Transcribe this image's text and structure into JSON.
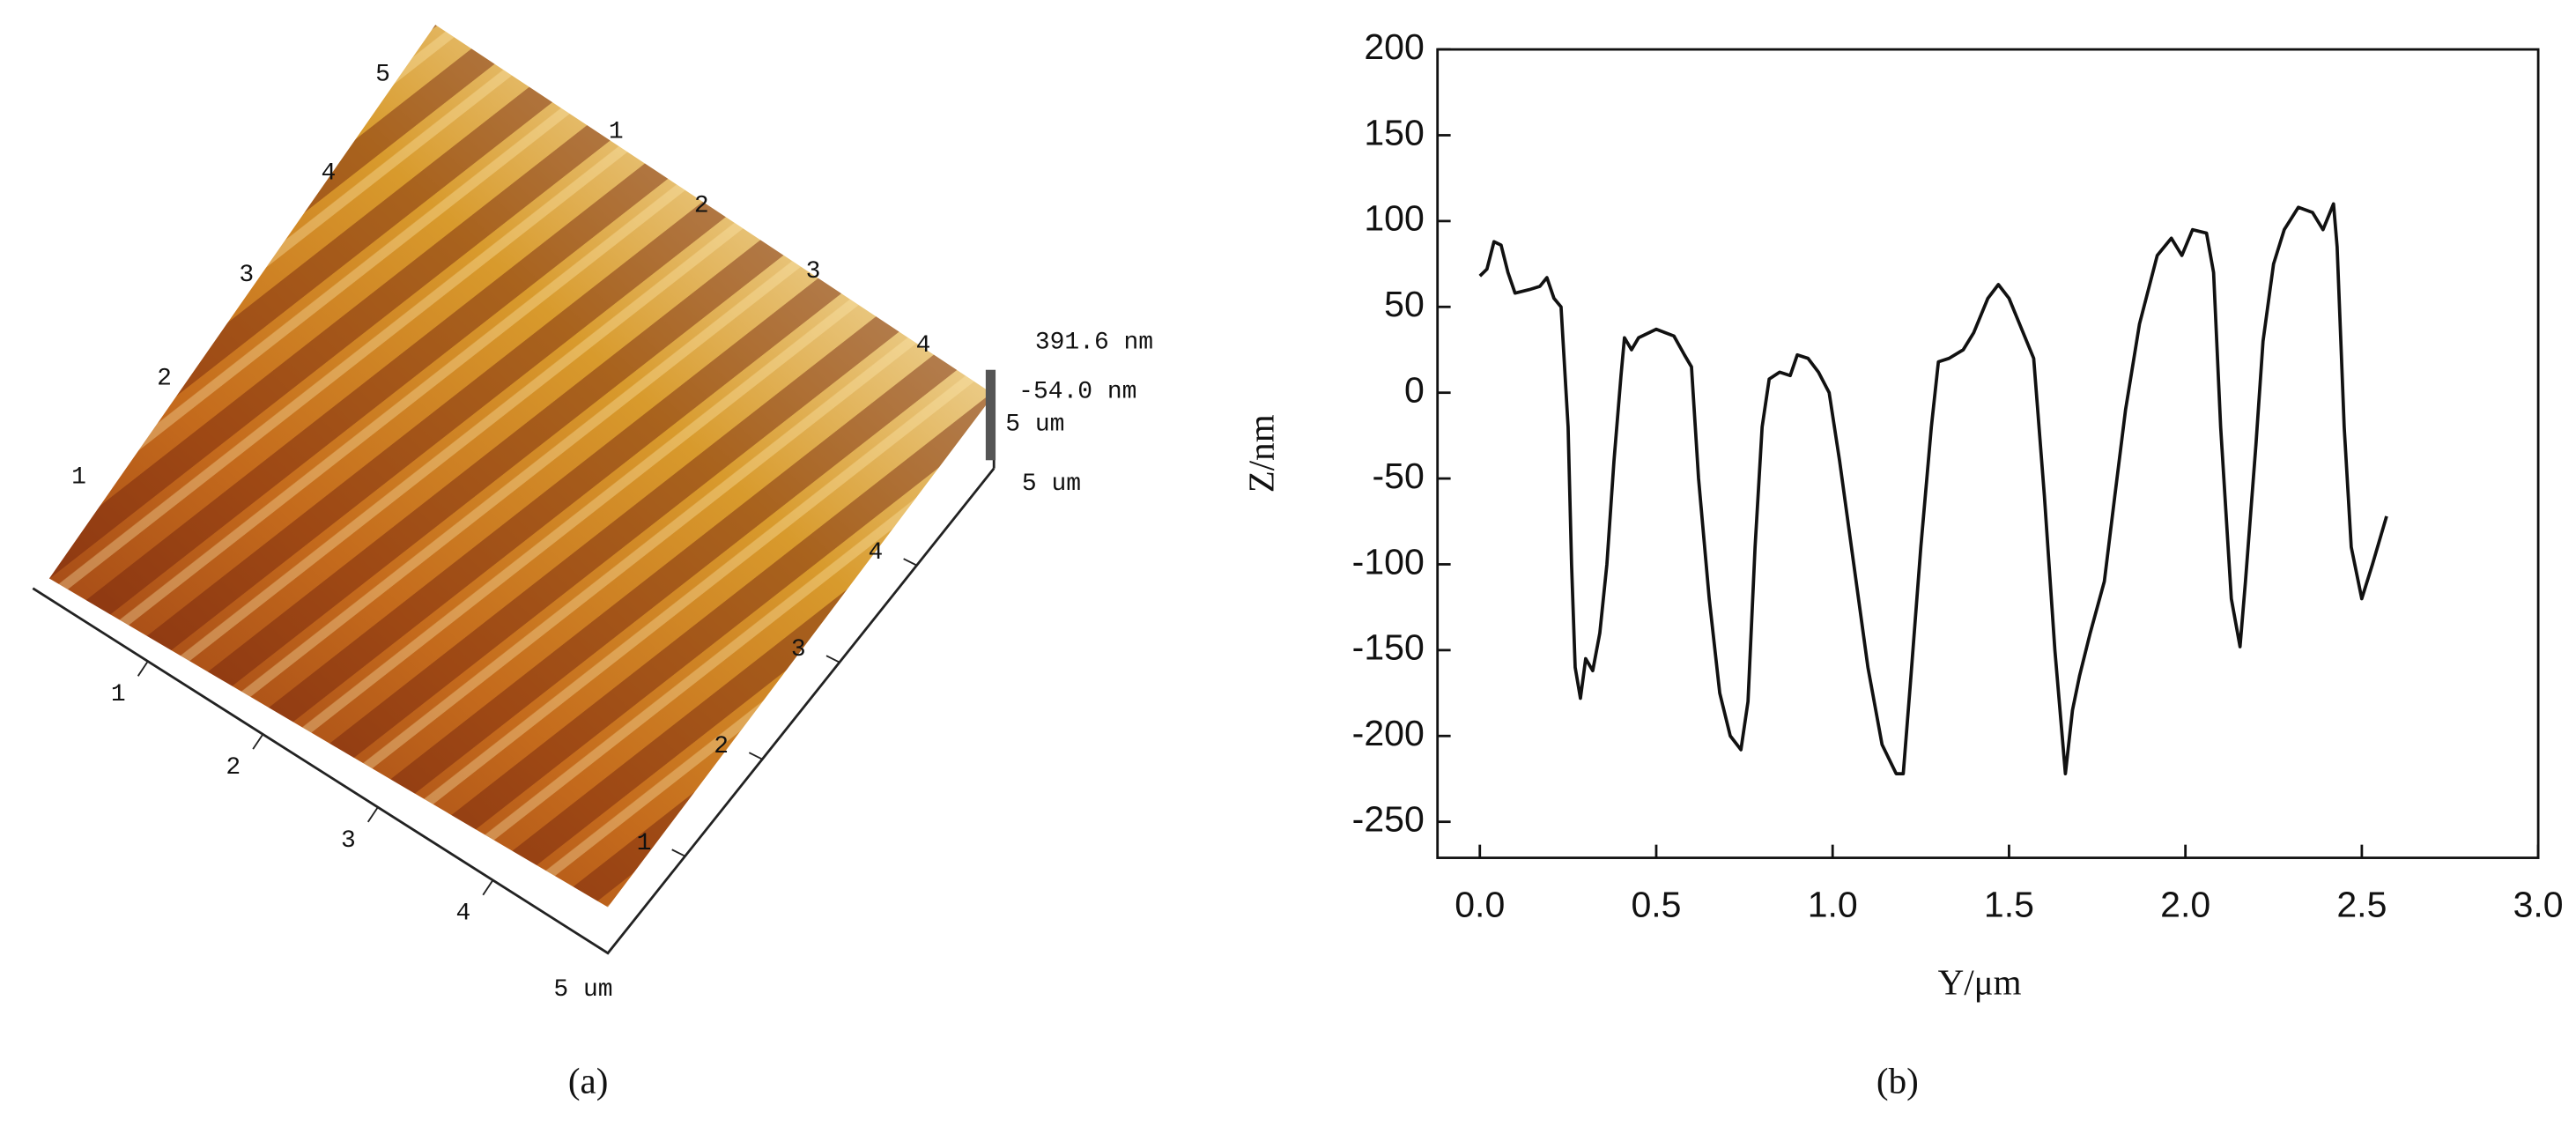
{
  "afm_image": {
    "height_ticks": [
      "1",
      "2",
      "3",
      "4",
      "5"
    ],
    "back_ticks": [
      "1",
      "2",
      "3",
      "4"
    ],
    "x_ticks": [
      "1",
      "2",
      "3",
      "4"
    ],
    "x_end_label": "5 um",
    "y_ticks": [
      "1",
      "2",
      "3",
      "4"
    ],
    "y_end_label": "5 um",
    "z_max_label": "391.6 nm",
    "z_min_label": "-54.0 nm",
    "z_range_label": "5 um"
  },
  "panels": [
    "(a)",
    "(b)"
  ],
  "chart_data": {
    "type": "line",
    "x_label": "Y/μm",
    "y_label": "Z/nm",
    "color": "#111111",
    "xlim": [
      -0.12,
      3.0
    ],
    "xticks": [
      {
        "value": 0,
        "label": "0.0"
      },
      0.5,
      {
        "value": 1,
        "label": "1.0"
      },
      1.5,
      {
        "value": 2,
        "label": "2.0"
      },
      2.5,
      {
        "value": 3,
        "label": "3.0"
      }
    ],
    "ylim": [
      -271,
      200
    ],
    "yticks": [
      -250,
      -200,
      -150,
      -100,
      -50,
      0,
      50,
      100,
      150,
      200
    ],
    "x": [
      0.0,
      0.02,
      0.04,
      0.06,
      0.08,
      0.1,
      0.14,
      0.17,
      0.19,
      0.21,
      0.23,
      0.25,
      0.26,
      0.27,
      0.285,
      0.3,
      0.32,
      0.34,
      0.36,
      0.38,
      0.4,
      0.41,
      0.43,
      0.45,
      0.5,
      0.55,
      0.58,
      0.6,
      0.62,
      0.65,
      0.68,
      0.71,
      0.74,
      0.76,
      0.78,
      0.8,
      0.82,
      0.85,
      0.88,
      0.9,
      0.93,
      0.96,
      0.99,
      1.02,
      1.06,
      1.1,
      1.14,
      1.18,
      1.2,
      1.22,
      1.25,
      1.28,
      1.3,
      1.33,
      1.37,
      1.4,
      1.44,
      1.47,
      1.5,
      1.53,
      1.57,
      1.6,
      1.63,
      1.66,
      1.68,
      1.7,
      1.73,
      1.77,
      1.8,
      1.83,
      1.87,
      1.92,
      1.96,
      1.99,
      2.02,
      2.06,
      2.08,
      2.1,
      2.13,
      2.155,
      2.17,
      2.2,
      2.22,
      2.25,
      2.28,
      2.32,
      2.36,
      2.39,
      2.42,
      2.43,
      2.45,
      2.47,
      2.5,
      2.53,
      2.57
    ],
    "values": [
      68,
      72,
      88,
      86,
      70,
      58,
      60,
      62,
      67,
      55,
      50,
      -20,
      -100,
      -160,
      -178,
      -155,
      -162,
      -140,
      -100,
      -40,
      10,
      32,
      25,
      32,
      37,
      33,
      22,
      15,
      -50,
      -120,
      -175,
      -200,
      -208,
      -180,
      -90,
      -20,
      8,
      12,
      10,
      22,
      20,
      12,
      0,
      -40,
      -100,
      -160,
      -205,
      -222,
      -222,
      -170,
      -90,
      -20,
      18,
      20,
      25,
      35,
      55,
      63,
      55,
      40,
      20,
      -60,
      -150,
      -222,
      -185,
      -165,
      -140,
      -110,
      -60,
      -10,
      40,
      80,
      90,
      80,
      95,
      93,
      70,
      -20,
      -120,
      -148,
      -110,
      -30,
      30,
      75,
      95,
      108,
      105,
      95,
      110,
      85,
      -20,
      -90,
      -120,
      -100,
      -72
    ]
  }
}
